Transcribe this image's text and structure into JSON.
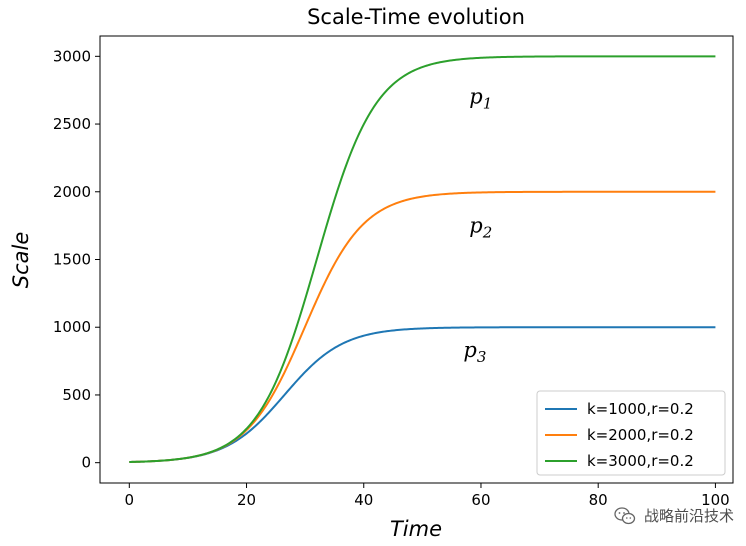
{
  "chart_data": {
    "type": "line",
    "title": "Scale-Time evolution",
    "xlabel": "Time",
    "ylabel": "Scale",
    "xlim": [
      -5,
      103
    ],
    "ylim": [
      -150,
      3150
    ],
    "xticks": [
      0,
      20,
      40,
      60,
      80,
      100
    ],
    "yticks": [
      0,
      500,
      1000,
      1500,
      2000,
      2500,
      3000
    ],
    "grid": false,
    "legend_position": "lower-right",
    "series": [
      {
        "name": "k=1000,r=0.2",
        "k": 1000,
        "r": 0.2,
        "color": "#1f77b4"
      },
      {
        "name": "k=2000,r=0.2",
        "k": 2000,
        "r": 0.2,
        "color": "#ff7f0e"
      },
      {
        "name": "k=3000,r=0.2",
        "k": 3000,
        "r": 0.2,
        "color": "#2ca02c"
      }
    ],
    "initial_value": 5,
    "x_range": [
      0,
      100
    ],
    "annotations": [
      {
        "base": "p",
        "sub": "1",
        "x": 58,
        "y": 2650
      },
      {
        "base": "p",
        "sub": "2",
        "x": 58,
        "y": 1700
      },
      {
        "base": "p",
        "sub": "3",
        "x": 57,
        "y": 780
      }
    ]
  },
  "watermark": {
    "text": "战略前沿技术",
    "icon": "wechat-icon"
  }
}
